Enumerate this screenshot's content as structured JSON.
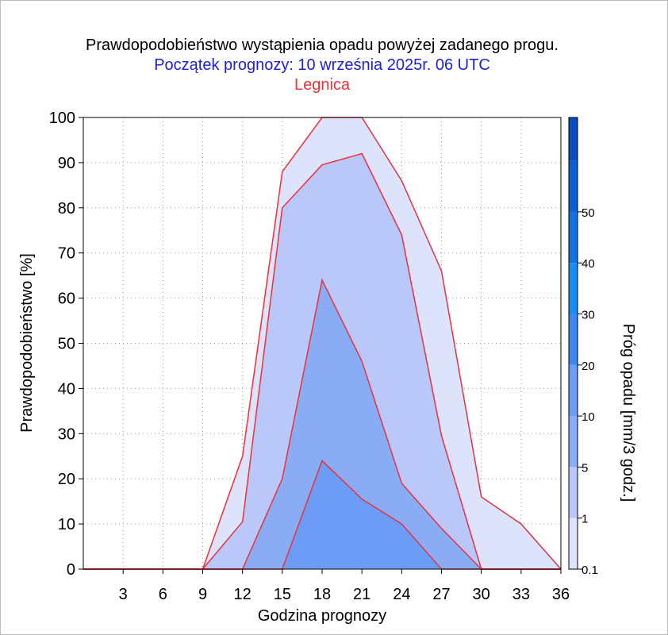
{
  "chart_data": {
    "type": "area",
    "title": "Prawdopodobieństwo wystąpienia opadu powyżej zadanego progu.",
    "subtitle": "Początek prognozy: 10 września 2025r. 06 UTC",
    "location": "Legnica",
    "xlabel": "Godzina prognozy",
    "ylabel": "Prawdopodobieństwo [%]",
    "xlim": [
      0,
      36
    ],
    "ylim": [
      0,
      100
    ],
    "xticks": [
      3,
      6,
      9,
      12,
      15,
      18,
      21,
      24,
      27,
      30,
      33,
      36
    ],
    "yticks": [
      0,
      10,
      20,
      30,
      40,
      50,
      60,
      70,
      80,
      90,
      100
    ],
    "grid": true,
    "x": [
      0,
      3,
      6,
      9,
      12,
      15,
      18,
      21,
      24,
      27,
      30,
      33,
      36
    ],
    "series": [
      {
        "name": "0.1",
        "color": "#dde3fb",
        "values": [
          0,
          0,
          0,
          0,
          25,
          88,
          100,
          100,
          86,
          66,
          16,
          10,
          0
        ]
      },
      {
        "name": "1",
        "color": "#b9c8f8",
        "values": [
          0,
          0,
          0,
          0,
          10.5,
          80,
          89.5,
          92,
          74,
          29.5,
          0,
          0,
          0
        ]
      },
      {
        "name": "5",
        "color": "#8aacf4",
        "values": [
          0,
          0,
          0,
          0,
          0,
          20,
          64,
          46,
          19,
          9,
          0,
          0,
          0
        ]
      },
      {
        "name": "10",
        "color": "#6d9cf6",
        "values": [
          0,
          0,
          0,
          0,
          0,
          0,
          24,
          15.5,
          10,
          0,
          0,
          0,
          0
        ]
      }
    ],
    "colorbar": {
      "label": "Próg opadu [mm/3 godz.]",
      "ticks": [
        "0.1",
        "1",
        "5",
        "10",
        "20",
        "30",
        "40",
        "50"
      ],
      "colors": [
        "#dde3fb",
        "#b9c8f8",
        "#8aacf4",
        "#6d9cf6",
        "#3f86ee",
        "#1a8cf0",
        "#1273e0",
        "#0b5fd0",
        "#0a4dbb"
      ]
    },
    "line_color": "#e8323c",
    "title_color": "#000000",
    "subtitle_color": "#1f1fd6",
    "location_color": "#e8323c"
  }
}
